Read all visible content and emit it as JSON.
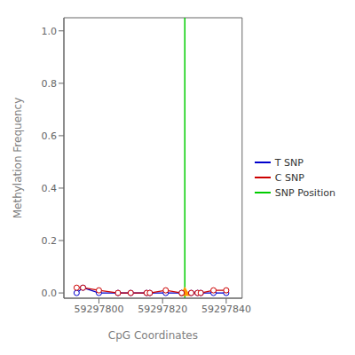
{
  "chart_data": {
    "type": "line",
    "xlabel": "CpG Coordinates",
    "ylabel": "Methylation Frequency",
    "x": [
      59297793,
      59297795,
      59297800,
      59297806,
      59297810,
      59297815,
      59297816,
      59297821,
      59297826,
      59297829,
      59297831,
      59297832,
      59297836,
      59297840
    ],
    "series": [
      {
        "name": "T SNP",
        "color": "#0000cc",
        "marker": "circle",
        "values": [
          0.0,
          0.02,
          0.0,
          0.0,
          0.0,
          0.0,
          0.0,
          0.0,
          0.0,
          0.0,
          0.0,
          0.0,
          0.0,
          0.0
        ]
      },
      {
        "name": "C SNP",
        "color": "#cc0000",
        "marker": "circle",
        "values": [
          0.02,
          0.02,
          0.01,
          0.0,
          0.0,
          0.0,
          0.0,
          0.01,
          0.0,
          0.0,
          0.0,
          0.0,
          0.01,
          0.01
        ]
      }
    ],
    "reference_lines": [
      {
        "name": "SNP Position",
        "x": 59297827,
        "color": "#00cc00"
      }
    ],
    "points": [
      {
        "x": 59297827,
        "y": 0.0,
        "color": "#ff9900",
        "marker": "triangle"
      }
    ],
    "xlim": [
      59297789,
      59297845
    ],
    "ylim": [
      -0.02,
      1.05
    ],
    "xticks": [
      59297800,
      59297820,
      59297840
    ],
    "yticks": [
      {
        "value": 0.0,
        "label": "0.0"
      },
      0.2,
      0.4,
      0.6,
      0.8,
      {
        "value": 1.0,
        "label": "1.0"
      }
    ],
    "legend": "right",
    "grid": false
  }
}
